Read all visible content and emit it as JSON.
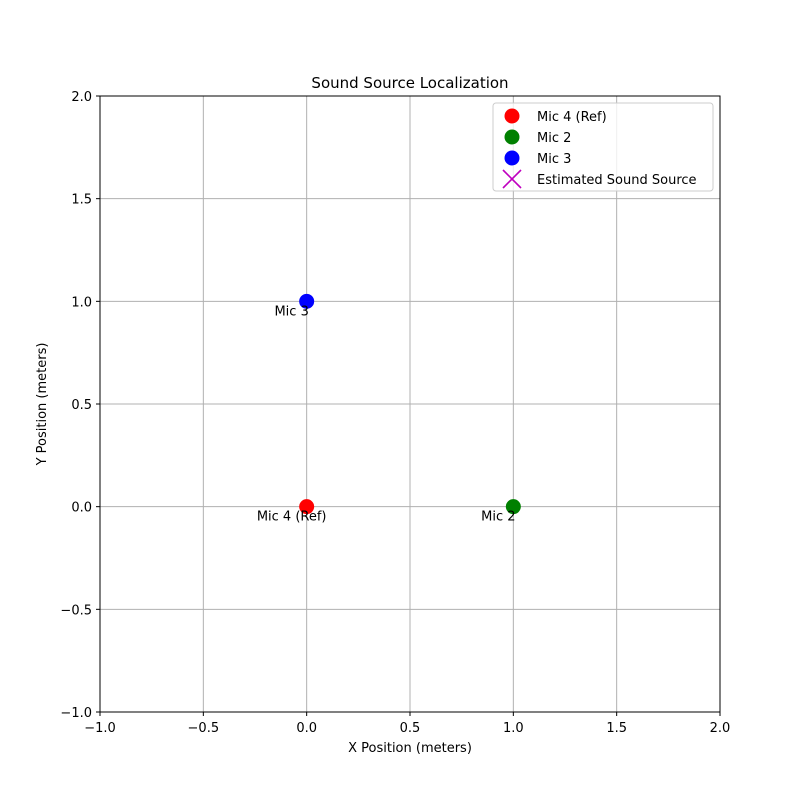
{
  "chart_data": {
    "type": "scatter",
    "title": "Sound Source Localization",
    "xlabel": "X Position (meters)",
    "ylabel": "Y Position (meters)",
    "xlim": [
      -1.0,
      2.0
    ],
    "ylim": [
      -1.0,
      2.0
    ],
    "grid": true,
    "legend_position": "top-right",
    "x_ticks": [
      -1.0,
      -0.5,
      0.0,
      0.5,
      1.0,
      1.5,
      2.0
    ],
    "x_tick_labels": [
      "−1.0",
      "−0.5",
      "0.0",
      "0.5",
      "1.0",
      "1.5",
      "2.0"
    ],
    "y_ticks": [
      -1.0,
      -0.5,
      0.0,
      0.5,
      1.0,
      1.5,
      2.0
    ],
    "y_tick_labels": [
      "−1.0",
      "−0.5",
      "0.0",
      "0.5",
      "1.0",
      "1.5",
      "2.0"
    ],
    "series": [
      {
        "name": "Mic 4 (Ref)",
        "marker": "circle",
        "color": "#ff0000",
        "x": [
          0.0
        ],
        "y": [
          0.0
        ],
        "label": "Mic 4 (Ref)"
      },
      {
        "name": "Mic 2",
        "marker": "circle",
        "color": "#008000",
        "x": [
          1.0
        ],
        "y": [
          0.0
        ],
        "label": "Mic 2"
      },
      {
        "name": "Mic 3",
        "marker": "circle",
        "color": "#0000ff",
        "x": [
          0.0
        ],
        "y": [
          1.0
        ],
        "label": "Mic 3"
      },
      {
        "name": "Estimated Sound Source",
        "marker": "x",
        "color": "#bf00bf",
        "x": [],
        "y": []
      }
    ]
  }
}
